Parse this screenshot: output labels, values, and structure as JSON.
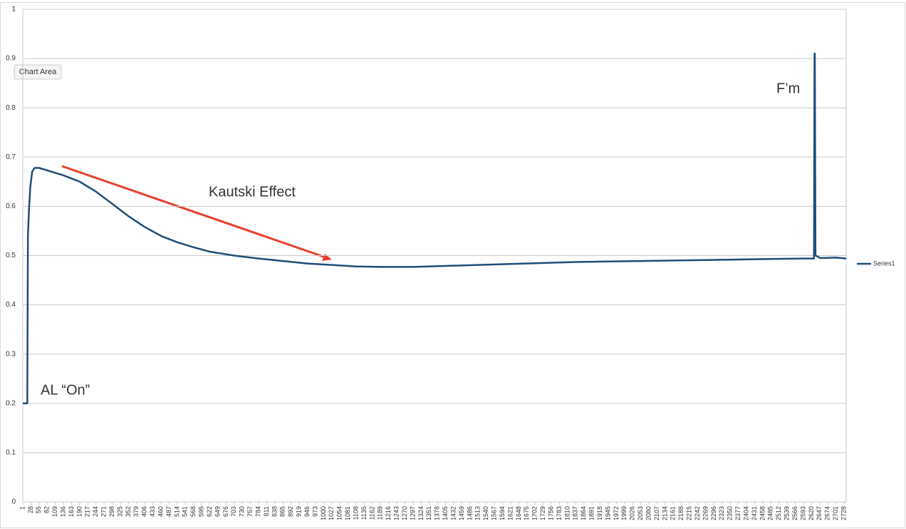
{
  "chart_data": {
    "type": "line",
    "tooltip": "Chart Area",
    "annotations": [
      "Kautski Effect",
      "F’m",
      "AL “On”"
    ],
    "x": [
      1,
      10,
      16,
      18,
      22,
      26,
      32,
      40,
      55,
      82,
      136,
      190,
      244,
      298,
      352,
      406,
      460,
      514,
      568,
      622,
      703,
      784,
      865,
      946,
      1027,
      1108,
      1189,
      1297,
      1405,
      1513,
      1621,
      1729,
      1837,
      1945,
      2053,
      2161,
      2269,
      2377,
      2485,
      2593,
      2628,
      2630,
      2631,
      2633,
      2650,
      2701,
      2735
    ],
    "series": [
      {
        "name": "Series1",
        "color": "#1f4e79",
        "values": [
          0.2,
          0.2,
          0.2,
          0.54,
          0.6,
          0.64,
          0.67,
          0.678,
          0.678,
          0.673,
          0.663,
          0.65,
          0.63,
          0.605,
          0.58,
          0.558,
          0.54,
          0.527,
          0.517,
          0.508,
          0.5,
          0.494,
          0.489,
          0.484,
          0.481,
          0.478,
          0.477,
          0.477,
          0.479,
          0.481,
          0.483,
          0.485,
          0.487,
          0.488,
          0.489,
          0.49,
          0.491,
          0.492,
          0.493,
          0.494,
          0.494,
          0.91,
          0.91,
          0.5,
          0.495,
          0.496,
          0.494
        ]
      }
    ],
    "xlim": [
      1,
      2735
    ],
    "xticks": [
      1,
      28,
      55,
      82,
      109,
      136,
      163,
      190,
      217,
      244,
      271,
      298,
      325,
      352,
      379,
      406,
      433,
      460,
      487,
      514,
      541,
      568,
      595,
      622,
      649,
      676,
      703,
      730,
      757,
      784,
      811,
      838,
      865,
      892,
      919,
      946,
      973,
      1000,
      1027,
      1054,
      1081,
      1108,
      1135,
      1162,
      1189,
      1216,
      1243,
      1270,
      1297,
      1324,
      1351,
      1378,
      1405,
      1432,
      1459,
      1486,
      1513,
      1540,
      1567,
      1594,
      1621,
      1648,
      1675,
      1702,
      1729,
      1756,
      1783,
      1810,
      1837,
      1864,
      1891,
      1918,
      1945,
      1972,
      1999,
      2026,
      2053,
      2080,
      2107,
      2134,
      2161,
      2188,
      2215,
      2242,
      2269,
      2296,
      2323,
      2350,
      2377,
      2404,
      2431,
      2458,
      2485,
      2512,
      2539,
      2566,
      2593,
      2620,
      2647,
      2674,
      2701,
      2728
    ],
    "ylim": [
      0,
      1
    ],
    "yticks": [
      0,
      0.1,
      0.2,
      0.3,
      0.4,
      0.5,
      0.6,
      0.7,
      0.8,
      0.9,
      1
    ],
    "grid": true,
    "legend": "right"
  }
}
